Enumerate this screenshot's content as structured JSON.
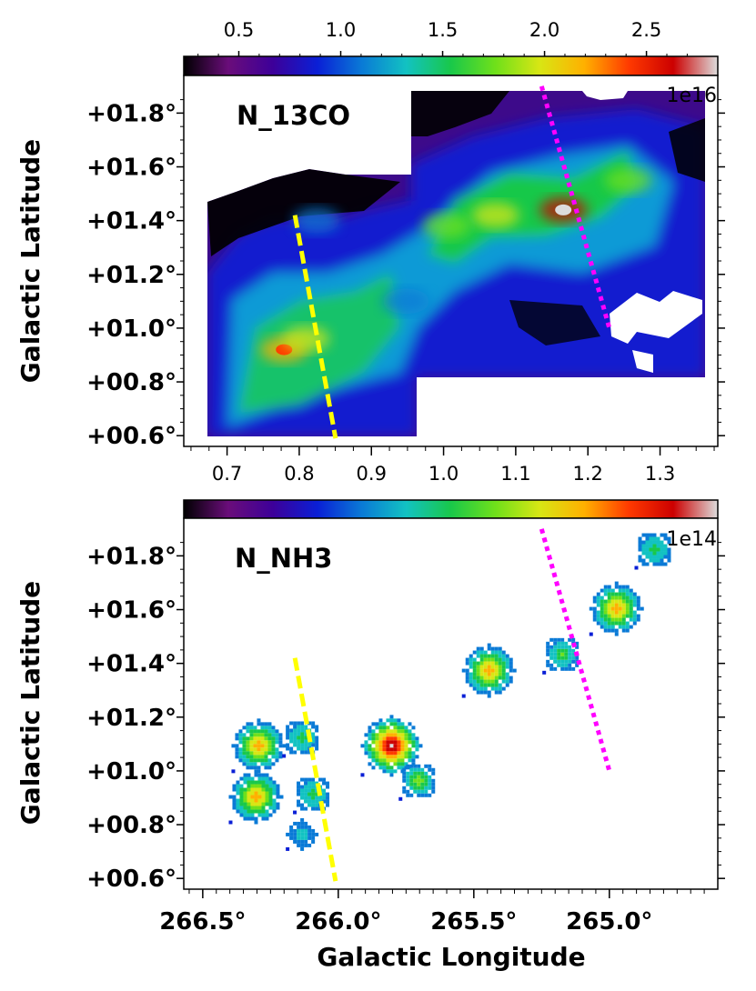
{
  "chart_data": [
    {
      "type": "heatmap",
      "panel_label": "N_13CO",
      "colorbar": {
        "ticks": [
          "0.5",
          "1.0",
          "1.5",
          "2.0",
          "2.5"
        ],
        "tick_values": [
          0.5,
          1.0,
          1.5,
          2.0,
          2.5
        ],
        "range": [
          0.23,
          2.85
        ],
        "scale_label": "1e16",
        "colormap": [
          "#000000",
          "#6a0d7a",
          "#3d0099",
          "#0a1fd6",
          "#0a7ad6",
          "#12c2c2",
          "#19c84a",
          "#6fe01a",
          "#d8e614",
          "#ffb000",
          "#ff3a00",
          "#cc0000",
          "#dcdcdc"
        ]
      },
      "xaxis": {
        "label": "",
        "ticks": [
          "0.7",
          "0.8",
          "0.9",
          "1.0",
          "1.1",
          "1.2",
          "1.3"
        ],
        "tick_values": [
          0.7,
          0.8,
          0.9,
          1.0,
          1.1,
          1.2,
          1.3
        ],
        "range": [
          0.64,
          1.38
        ],
        "position": "top"
      },
      "yaxis": {
        "label": "Galactic Latitude",
        "ticks": [
          "+00.6°",
          "+00.8°",
          "+01.0°",
          "+01.2°",
          "+01.4°",
          "+01.6°",
          "+01.8°"
        ],
        "tick_values": [
          0.6,
          0.8,
          1.0,
          1.2,
          1.4,
          1.6,
          1.8
        ],
        "range": [
          0.56,
          1.94
        ]
      },
      "blobs": [
        {
          "lon": 266.08,
          "lat": 1.4,
          "value": 1.0
        },
        {
          "lon": 266.2,
          "lat": 0.92,
          "value": 2.2
        },
        {
          "lon": 266.12,
          "lat": 0.96,
          "value": 2.0
        },
        {
          "lon": 265.42,
          "lat": 1.42,
          "value": 1.9
        },
        {
          "lon": 265.6,
          "lat": 1.38,
          "value": 1.8
        },
        {
          "lon": 265.17,
          "lat": 1.44,
          "value": 2.7
        },
        {
          "lon": 264.93,
          "lat": 1.55,
          "value": 1.7
        },
        {
          "lon": 265.75,
          "lat": 1.1,
          "value": 1.2
        }
      ],
      "overlays": [
        {
          "style": "dashed",
          "color": "#ffff00",
          "from": {
            "lon": 266.16,
            "lat": 1.42
          },
          "to": {
            "lon": 266.01,
            "lat": 0.59
          }
        },
        {
          "style": "dotted",
          "color": "#ff00ff",
          "from": {
            "lon": 265.25,
            "lat": 1.9
          },
          "to": {
            "lon": 265.0,
            "lat": 1.0
          }
        }
      ]
    },
    {
      "type": "heatmap",
      "panel_label": "N_NH3",
      "colorbar": {
        "ticks": [],
        "scale_label": "1e14"
      },
      "xaxis": {
        "label": "Galactic Longitude",
        "ticks": [
          "266.5°",
          "266.0°",
          "265.5°",
          "265.0°"
        ],
        "tick_values": [
          266.5,
          266.0,
          265.5,
          265.0
        ],
        "range": [
          266.57,
          264.6
        ]
      },
      "yaxis": {
        "label": "Galactic Latitude",
        "ticks": [
          "+00.6°",
          "+00.8°",
          "+01.0°",
          "+01.2°",
          "+01.4°",
          "+01.6°",
          "+01.8°"
        ],
        "tick_values": [
          0.6,
          0.8,
          1.0,
          1.2,
          1.4,
          1.6,
          1.8
        ],
        "range": [
          0.56,
          1.94
        ]
      },
      "clumps": [
        {
          "lon": 266.3,
          "lat": 1.1,
          "peak": 0.7
        },
        {
          "lon": 266.31,
          "lat": 0.91,
          "peak": 0.7
        },
        {
          "lon": 266.14,
          "lat": 1.13,
          "peak": 0.3
        },
        {
          "lon": 266.1,
          "lat": 0.92,
          "peak": 0.3
        },
        {
          "lon": 266.14,
          "lat": 0.77,
          "peak": 0.2
        },
        {
          "lon": 265.81,
          "lat": 1.1,
          "peak": 1.0
        },
        {
          "lon": 265.71,
          "lat": 0.97,
          "peak": 0.45
        },
        {
          "lon": 265.45,
          "lat": 1.38,
          "peak": 0.7
        },
        {
          "lon": 265.18,
          "lat": 1.44,
          "peak": 0.35
        },
        {
          "lon": 264.98,
          "lat": 1.61,
          "peak": 0.7
        },
        {
          "lon": 264.84,
          "lat": 1.83,
          "peak": 0.3
        }
      ],
      "overlays": [
        {
          "style": "dashed",
          "color": "#ffff00",
          "from": {
            "lon": 266.16,
            "lat": 1.42
          },
          "to": {
            "lon": 266.01,
            "lat": 0.59
          }
        },
        {
          "style": "dotted",
          "color": "#ff00ff",
          "from": {
            "lon": 265.25,
            "lat": 1.9
          },
          "to": {
            "lon": 265.0,
            "lat": 1.0
          }
        }
      ]
    }
  ]
}
